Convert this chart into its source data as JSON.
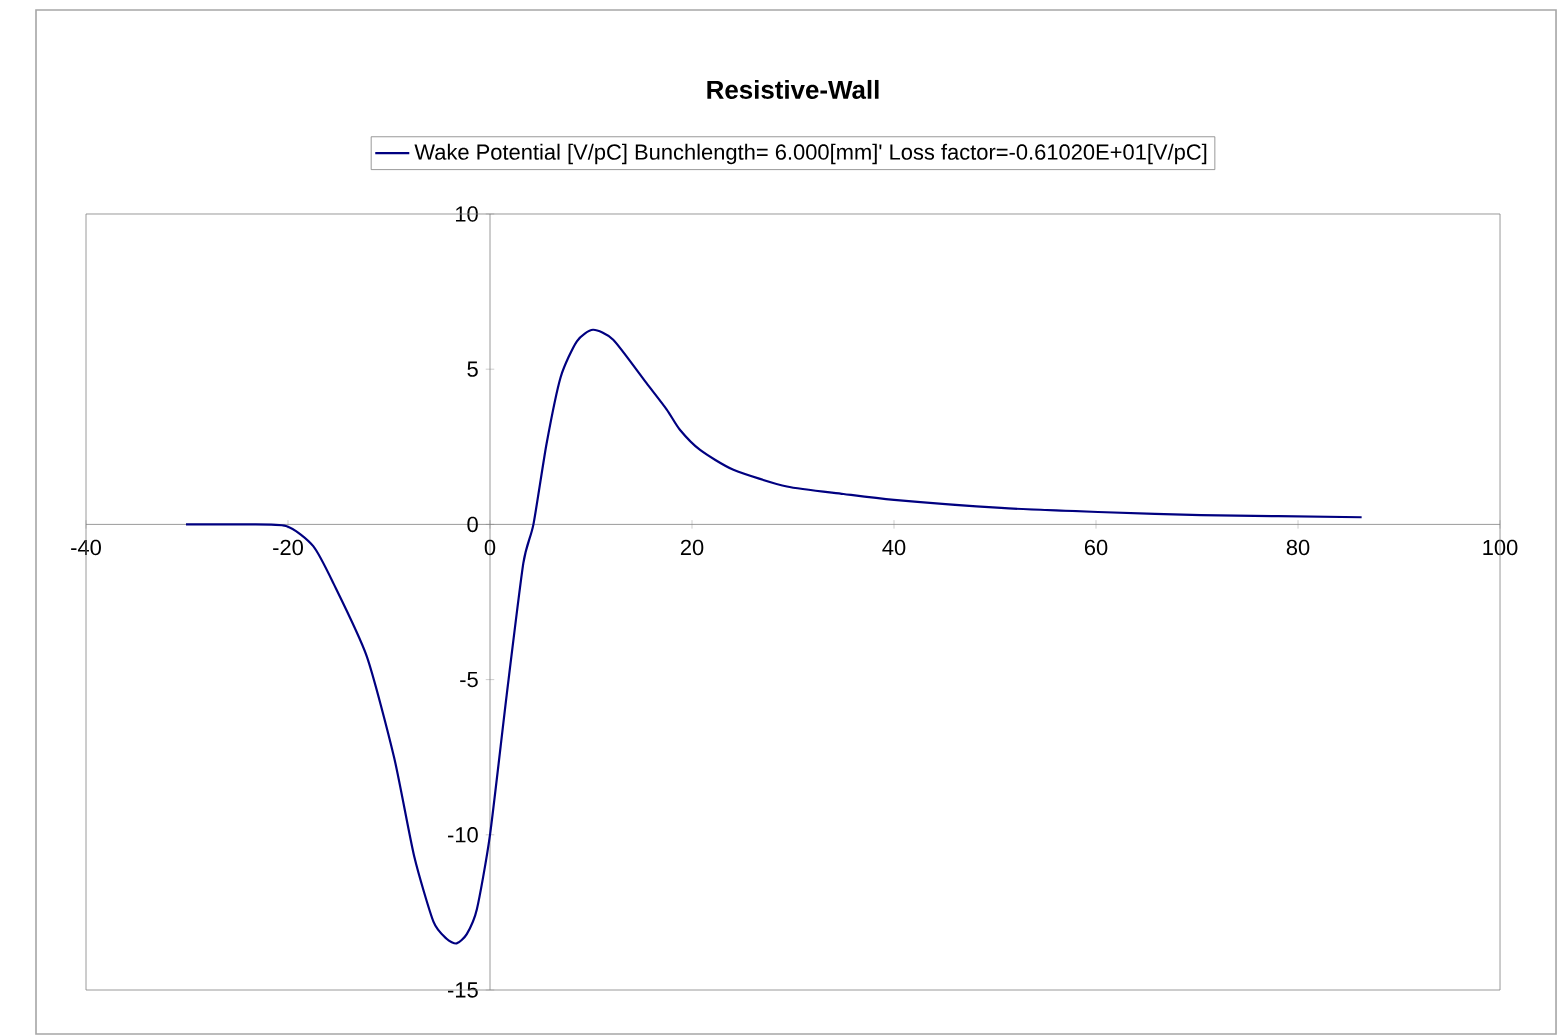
{
  "chart_data": {
    "type": "line",
    "title": "Resistive-Wall",
    "x": [
      -30.1,
      -25,
      -20.2,
      -17.5,
      -15.5,
      -12.2,
      -9.5,
      -7.5,
      -5.6,
      -4.3,
      -3.3,
      -2.3,
      -1.3,
      0,
      1.65,
      3.3,
      4.3,
      5.6,
      7.0,
      8.6,
      10.2,
      12.2,
      15.5,
      17.5,
      18.8,
      20.8,
      24.1,
      29.4,
      35,
      40,
      50.6,
      60.2,
      70.4,
      86.3
    ],
    "series": [
      {
        "name": "Wake Potential [V/pC] Bunchlength=   6.000[mm]' Loss factor=-0.61020E+01[V/pC]",
        "color": "#000080",
        "values": [
          0,
          0,
          -0.05,
          -0.7,
          -1.9,
          -4.25,
          -7.5,
          -10.7,
          -12.8,
          -13.35,
          -13.5,
          -13.2,
          -12.4,
          -10.0,
          -5.5,
          -1.25,
          0,
          2.6,
          4.75,
          5.9,
          6.27,
          5.95,
          4.55,
          3.7,
          3.05,
          2.4,
          1.76,
          1.22,
          0.98,
          0.79,
          0.53,
          0.4,
          0.3,
          0.23
        ]
      }
    ],
    "xlim": [
      -40,
      100
    ],
    "ylim": [
      -15,
      10
    ],
    "xticks": [
      -40,
      -20,
      0,
      20,
      40,
      60,
      80,
      100
    ],
    "yticks": [
      -15,
      -10,
      -5,
      0,
      5,
      10
    ],
    "grid": false,
    "legend": "top",
    "marker": "none",
    "line_style": "solid"
  }
}
